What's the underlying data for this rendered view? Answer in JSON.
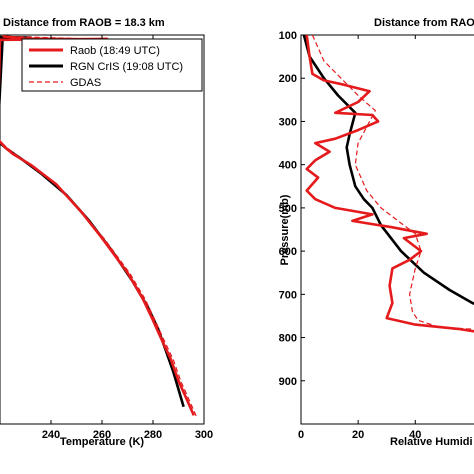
{
  "chart_data": [
    {
      "type": "line",
      "title": "Distance from RAOB = 18.3 km",
      "xlabel": "Temperature (K)",
      "ylabel": "",
      "xlim": [
        220,
        300
      ],
      "ylim": [
        1000,
        100
      ],
      "xticks": [
        "240",
        "260",
        "280",
        "300"
      ],
      "grid": false,
      "legend": "top-right",
      "series": [
        {
          "name": "Raob (18:49 UTC)",
          "color": "#e41a1c",
          "style": "solid",
          "points": [
            [
              221,
              103
            ],
            [
              230,
              108
            ],
            [
              255,
              110
            ],
            [
              262,
              109
            ],
            [
              220,
              111
            ],
            [
              219,
              340
            ],
            [
              222,
              360
            ],
            [
              225,
              375
            ],
            [
              232,
              400
            ],
            [
              242,
              445
            ],
            [
              252,
              510
            ],
            [
              260,
              570
            ],
            [
              270,
              650
            ],
            [
              276,
              710
            ],
            [
              280,
              760
            ],
            [
              283,
              800
            ],
            [
              287,
              850
            ],
            [
              290,
              900
            ],
            [
              293,
              940
            ],
            [
              296,
              980
            ]
          ]
        },
        {
          "name": "RGN CrIS (19:08 UTC)",
          "color": "#000000",
          "style": "solid",
          "points": [
            [
              219,
              105
            ],
            [
              232,
              106
            ],
            [
              221,
              108
            ],
            [
              219,
              345
            ],
            [
              223,
              365
            ],
            [
              228,
              385
            ],
            [
              236,
              420
            ],
            [
              246,
              470
            ],
            [
              255,
              530
            ],
            [
              264,
              600
            ],
            [
              272,
              670
            ],
            [
              278,
              730
            ],
            [
              282,
              780
            ],
            [
              285,
              830
            ],
            [
              288,
              880
            ],
            [
              290,
              920
            ],
            [
              292,
              960
            ]
          ]
        },
        {
          "name": "GDAS",
          "color": "#e41a1c",
          "style": "dashed",
          "points": [
            [
              221,
              103
            ],
            [
              250,
              108
            ],
            [
              220,
              111
            ],
            [
              219,
              340
            ],
            [
              223,
              362
            ],
            [
              231,
              398
            ],
            [
              242,
              446
            ],
            [
              252,
              511
            ],
            [
              261,
              572
            ],
            [
              271,
              652
            ],
            [
              277,
              712
            ],
            [
              281,
              762
            ],
            [
              284,
              802
            ],
            [
              288,
              852
            ],
            [
              291,
              902
            ],
            [
              294,
              942
            ],
            [
              297,
              982
            ]
          ]
        }
      ]
    },
    {
      "type": "line",
      "title": "Distance from RAOB",
      "xlabel": "Relative Humidi",
      "ylabel": "Pressure(mb)",
      "xlim": [
        0,
        70
      ],
      "ylim": [
        1000,
        100
      ],
      "xticks": [
        "0",
        "20",
        "40"
      ],
      "yticks": [
        "100",
        "200",
        "300",
        "400",
        "500",
        "600",
        "700",
        "800",
        "900"
      ],
      "grid": false,
      "series": [
        {
          "name": "Raob (18:49 UTC)",
          "color": "#e41a1c",
          "style": "solid",
          "points": [
            [
              2,
              100
            ],
            [
              3,
              150
            ],
            [
              4,
              190
            ],
            [
              8,
              205
            ],
            [
              15,
              215
            ],
            [
              24,
              230
            ],
            [
              20,
              255
            ],
            [
              12,
              280
            ],
            [
              25,
              285
            ],
            [
              27,
              300
            ],
            [
              20,
              320
            ],
            [
              12,
              340
            ],
            [
              5,
              350
            ],
            [
              10,
              370
            ],
            [
              5,
              390
            ],
            [
              2,
              410
            ],
            [
              6,
              430
            ],
            [
              2,
              460
            ],
            [
              5,
              480
            ],
            [
              12,
              500
            ],
            [
              25,
              515
            ],
            [
              18,
              530
            ],
            [
              32,
              545
            ],
            [
              44,
              560
            ],
            [
              36,
              570
            ],
            [
              42,
              600
            ],
            [
              38,
              620
            ],
            [
              32,
              640
            ],
            [
              31,
              680
            ],
            [
              32,
              720
            ],
            [
              30,
              755
            ],
            [
              40,
              770
            ],
            [
              55,
              780
            ],
            [
              65,
              790
            ],
            [
              70,
              792
            ]
          ]
        },
        {
          "name": "RGN CrIS (19:08 UTC)",
          "color": "#000000",
          "style": "solid",
          "points": [
            [
              1,
              100
            ],
            [
              3,
              150
            ],
            [
              8,
              200
            ],
            [
              13,
              240
            ],
            [
              19,
              280
            ],
            [
              17,
              330
            ],
            [
              16,
              360
            ],
            [
              17,
              400
            ],
            [
              19,
              450
            ],
            [
              22,
              480
            ],
            [
              25,
              500
            ],
            [
              28,
              540
            ],
            [
              35,
              600
            ],
            [
              43,
              650
            ],
            [
              52,
              690
            ],
            [
              60,
              720
            ],
            [
              68,
              740
            ]
          ]
        },
        {
          "name": "GDAS",
          "color": "#e41a1c",
          "style": "dashed",
          "points": [
            [
              4,
              100
            ],
            [
              8,
              160
            ],
            [
              14,
              200
            ],
            [
              20,
              240
            ],
            [
              26,
              275
            ],
            [
              24,
              300
            ],
            [
              20,
              350
            ],
            [
              19,
              400
            ],
            [
              23,
              460
            ],
            [
              28,
              500
            ],
            [
              34,
              530
            ],
            [
              40,
              560
            ],
            [
              42,
              600
            ],
            [
              40,
              640
            ],
            [
              38,
              700
            ],
            [
              39,
              740
            ],
            [
              41,
              760
            ],
            [
              48,
              775
            ],
            [
              58,
              780
            ],
            [
              70,
              782
            ]
          ]
        }
      ]
    }
  ]
}
